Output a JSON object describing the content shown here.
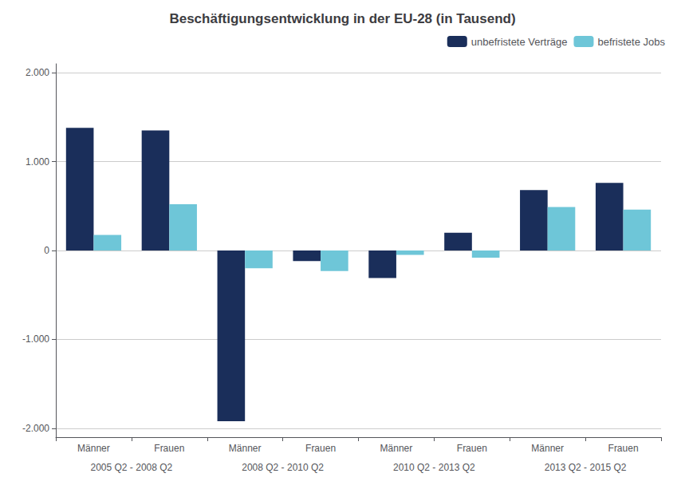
{
  "chart_data": {
    "type": "bar",
    "title": "Beschäftigungsentwicklung in der EU-28 (in Tausend)",
    "categories": [
      "Männer",
      "Frauen",
      "Männer",
      "Frauen",
      "Männer",
      "Frauen",
      "Männer",
      "Frauen"
    ],
    "annotations": [
      "2005 Q2 - 2008 Q2",
      "2008 Q2 - 2010 Q2",
      "2010 Q2 - 2013 Q2",
      "2013 Q2 - 2015 Q2"
    ],
    "series": [
      {
        "name": "unbefristete Verträge",
        "color": "#1a2e5a",
        "values": [
          1380,
          1350,
          -1920,
          -120,
          -310,
          200,
          680,
          760
        ]
      },
      {
        "name": "befristete Jobs",
        "color": "#6ec6d8",
        "values": [
          175,
          520,
          -200,
          -230,
          -50,
          -80,
          490,
          460
        ]
      }
    ],
    "ylim": [
      -2100,
      2100
    ],
    "yticks": [
      {
        "value": -2000,
        "label": "-2.000"
      },
      {
        "value": -1000,
        "label": "-1.000"
      },
      0,
      {
        "value": 1000,
        "label": "1.000"
      },
      {
        "value": 2000,
        "label": "2.000"
      }
    ],
    "grid": true,
    "legend": "upper right"
  }
}
